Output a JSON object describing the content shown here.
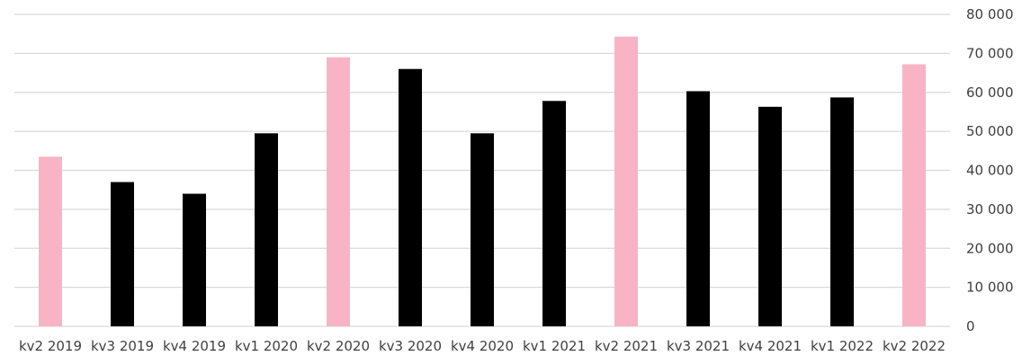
{
  "chart_data": {
    "type": "bar",
    "categories": [
      "kv2 2019",
      "kv3 2019",
      "kv4 2019",
      "kv1 2020",
      "kv2 2020",
      "kv3 2020",
      "kv4 2020",
      "kv1 2021",
      "kv2 2021",
      "kv3 2021",
      "kv4 2021",
      "kv1 2022",
      "kv2 2022"
    ],
    "values": [
      43500,
      37000,
      34000,
      49500,
      69000,
      66000,
      49500,
      57800,
      74300,
      60300,
      56300,
      58700,
      67200
    ],
    "bar_colors": [
      "#f8b4c4",
      "#000000",
      "#000000",
      "#000000",
      "#f8b4c4",
      "#000000",
      "#000000",
      "#000000",
      "#f8b4c4",
      "#000000",
      "#000000",
      "#000000",
      "#f8b4c4"
    ],
    "highlight_color": "#f8b4c4",
    "base_color": "#000000",
    "title": "",
    "xlabel": "",
    "ylabel": "",
    "ylim": [
      0,
      80000
    ],
    "y_ticks": [
      0,
      10000,
      20000,
      30000,
      40000,
      50000,
      60000,
      70000,
      80000
    ],
    "y_tick_labels": [
      "0",
      "10 000",
      "20 000",
      "30 000",
      "40 000",
      "50 000",
      "60 000",
      "70 000",
      "80 000"
    ],
    "y_axis_position": "right",
    "grid": true,
    "legend": "none"
  }
}
